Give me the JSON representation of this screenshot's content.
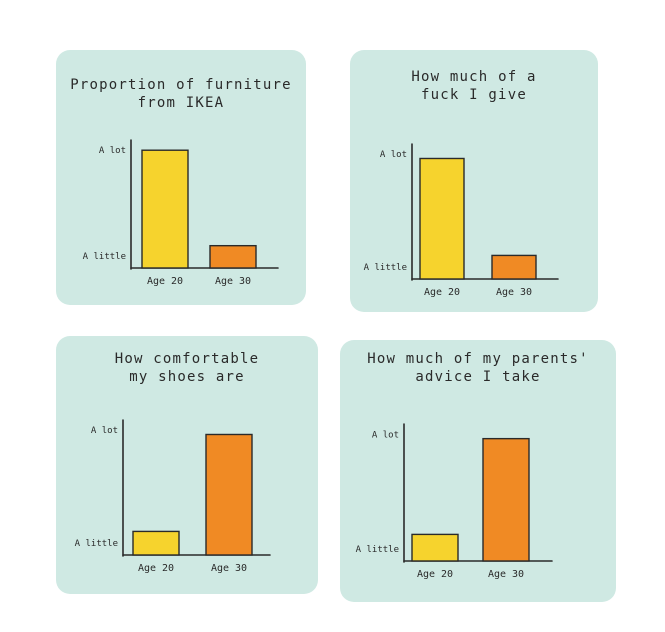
{
  "palette": {
    "panel_bg": "#cfe9e3",
    "age20_color": "#f6d32d",
    "age30_color": "#f08a24",
    "ink": "#2a2a2a"
  },
  "chart_data": [
    {
      "type": "bar",
      "title": "Proportion of furniture\nfrom IKEA",
      "categories": [
        "Age 20",
        "Age 30"
      ],
      "values": [
        0.95,
        0.18
      ],
      "ytick_labels": [
        "A lot",
        "A little"
      ],
      "ylim": [
        0,
        1
      ],
      "bar_colors": [
        "#f6d32d",
        "#f08a24"
      ],
      "grid": false
    },
    {
      "type": "bar",
      "title": "How much of a\nfuck I give",
      "categories": [
        "Age 20",
        "Age 30"
      ],
      "values": [
        0.92,
        0.18
      ],
      "ytick_labels": [
        "A lot",
        "A little"
      ],
      "ylim": [
        0,
        1
      ],
      "bar_colors": [
        "#f6d32d",
        "#f08a24"
      ],
      "grid": false
    },
    {
      "type": "bar",
      "title": "How comfortable\nmy shoes are",
      "categories": [
        "Age 20",
        "Age 30"
      ],
      "values": [
        0.18,
        0.92
      ],
      "ytick_labels": [
        "A lot",
        "A little"
      ],
      "ylim": [
        0,
        1
      ],
      "bar_colors": [
        "#f6d32d",
        "#f08a24"
      ],
      "grid": false
    },
    {
      "type": "bar",
      "title": "How much of my parents'\nadvice I take",
      "categories": [
        "Age 20",
        "Age 30"
      ],
      "values": [
        0.2,
        0.92
      ],
      "ytick_labels": [
        "A lot",
        "A little"
      ],
      "ylim": [
        0,
        1
      ],
      "bar_colors": [
        "#f6d32d",
        "#f08a24"
      ],
      "grid": false
    }
  ]
}
